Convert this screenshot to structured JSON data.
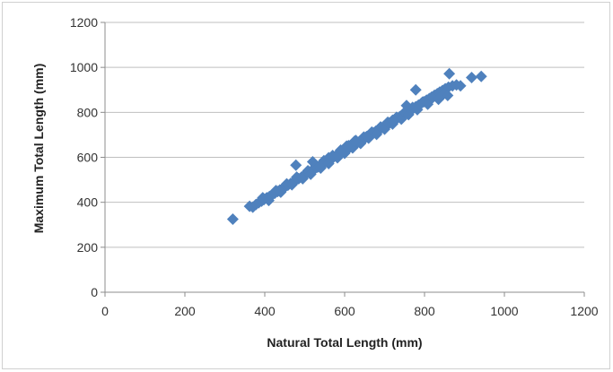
{
  "chart_data": {
    "type": "scatter",
    "xlabel": "Natural Total Length (mm)",
    "ylabel": "Maximum Total Length (mm)",
    "xlim": [
      0,
      1200
    ],
    "ylim": [
      0,
      1200
    ],
    "xticks": [
      "0",
      "200",
      "400",
      "600",
      "800",
      "1000",
      "1200"
    ],
    "yticks": [
      "0",
      "200",
      "400",
      "600",
      "800",
      "1000",
      "1200"
    ],
    "grid": "horizontal",
    "legend": "none",
    "marker": "diamond",
    "color": "#4f81bd",
    "series": [
      {
        "points": [
          [
            320,
            325
          ],
          [
            362,
            382
          ],
          [
            370,
            378
          ],
          [
            378,
            390
          ],
          [
            385,
            398
          ],
          [
            392,
            405
          ],
          [
            398,
            412
          ],
          [
            405,
            420
          ],
          [
            412,
            426
          ],
          [
            418,
            432
          ],
          [
            425,
            440
          ],
          [
            432,
            448
          ],
          [
            438,
            455
          ],
          [
            445,
            462
          ],
          [
            452,
            470
          ],
          [
            458,
            476
          ],
          [
            465,
            484
          ],
          [
            472,
            490
          ],
          [
            478,
            498
          ],
          [
            485,
            505
          ],
          [
            492,
            512
          ],
          [
            498,
            520
          ],
          [
            505,
            527
          ],
          [
            512,
            534
          ],
          [
            518,
            541
          ],
          [
            525,
            548
          ],
          [
            532,
            556
          ],
          [
            538,
            563
          ],
          [
            545,
            570
          ],
          [
            552,
            578
          ],
          [
            558,
            585
          ],
          [
            565,
            592
          ],
          [
            572,
            600
          ],
          [
            578,
            607
          ],
          [
            585,
            614
          ],
          [
            592,
            622
          ],
          [
            598,
            629
          ],
          [
            605,
            636
          ],
          [
            612,
            643
          ],
          [
            618,
            650
          ],
          [
            625,
            658
          ],
          [
            632,
            665
          ],
          [
            638,
            672
          ],
          [
            645,
            680
          ],
          [
            652,
            687
          ],
          [
            658,
            694
          ],
          [
            665,
            701
          ],
          [
            672,
            708
          ],
          [
            678,
            716
          ],
          [
            685,
            723
          ],
          [
            692,
            730
          ],
          [
            698,
            738
          ],
          [
            705,
            745
          ],
          [
            712,
            752
          ],
          [
            718,
            760
          ],
          [
            725,
            767
          ],
          [
            732,
            774
          ],
          [
            738,
            781
          ],
          [
            745,
            789
          ],
          [
            752,
            796
          ],
          [
            758,
            803
          ],
          [
            765,
            810
          ],
          [
            772,
            818
          ],
          [
            778,
            825
          ],
          [
            785,
            832
          ],
          [
            792,
            840
          ],
          [
            798,
            847
          ],
          [
            805,
            854
          ],
          [
            812,
            861
          ],
          [
            818,
            868
          ],
          [
            825,
            876
          ],
          [
            832,
            883
          ],
          [
            838,
            890
          ],
          [
            845,
            897
          ],
          [
            852,
            905
          ],
          [
            860,
            912
          ],
          [
            870,
            918
          ],
          [
            880,
            922
          ],
          [
            890,
            918
          ],
          [
            395,
            420
          ],
          [
            410,
            408
          ],
          [
            428,
            452
          ],
          [
            440,
            445
          ],
          [
            455,
            482
          ],
          [
            468,
            478
          ],
          [
            480,
            512
          ],
          [
            495,
            505
          ],
          [
            508,
            540
          ],
          [
            515,
            525
          ],
          [
            528,
            562
          ],
          [
            540,
            552
          ],
          [
            548,
            585
          ],
          [
            560,
            572
          ],
          [
            570,
            608
          ],
          [
            582,
            598
          ],
          [
            590,
            632
          ],
          [
            600,
            618
          ],
          [
            610,
            652
          ],
          [
            620,
            642
          ],
          [
            628,
            675
          ],
          [
            640,
            662
          ],
          [
            648,
            690
          ],
          [
            660,
            685
          ],
          [
            668,
            712
          ],
          [
            680,
            702
          ],
          [
            690,
            735
          ],
          [
            700,
            725
          ],
          [
            708,
            756
          ],
          [
            720,
            748
          ],
          [
            730,
            778
          ],
          [
            742,
            770
          ],
          [
            750,
            800
          ],
          [
            760,
            790
          ],
          [
            770,
            822
          ],
          [
            782,
            812
          ],
          [
            795,
            845
          ],
          [
            808,
            836
          ],
          [
            820,
            865
          ],
          [
            835,
            858
          ],
          [
            848,
            882
          ],
          [
            858,
            875
          ],
          [
            478,
            565
          ],
          [
            520,
            580
          ],
          [
            560,
            598
          ],
          [
            605,
            650
          ],
          [
            625,
            672
          ],
          [
            655,
            692
          ],
          [
            720,
            765
          ],
          [
            755,
            830
          ],
          [
            778,
            900
          ],
          [
            862,
            972
          ],
          [
            918,
            955
          ],
          [
            942,
            960
          ]
        ]
      }
    ]
  }
}
